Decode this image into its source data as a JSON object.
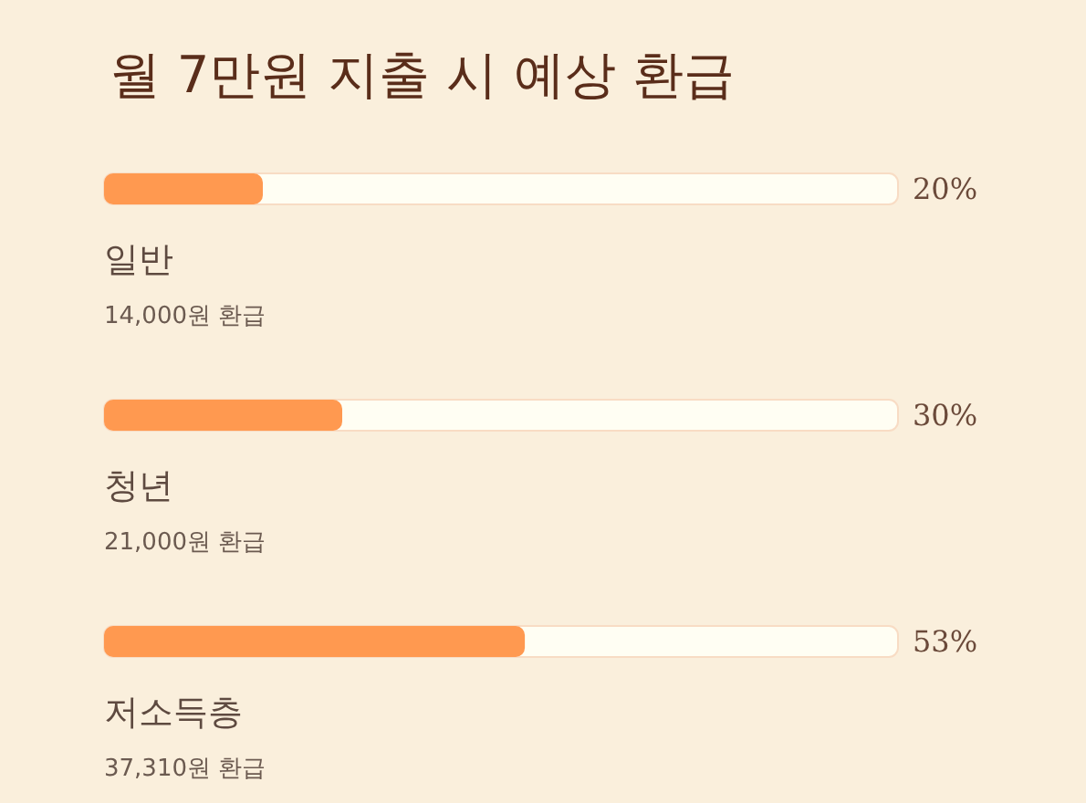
{
  "chart_data": {
    "type": "bar",
    "orientation": "horizontal",
    "title": "월 7만원 지출 시 예상 환급",
    "categories": [
      "일반",
      "청년",
      "저소득층"
    ],
    "values": [
      20,
      30,
      53
    ],
    "value_labels": [
      "20%",
      "30%",
      "53%"
    ],
    "color": "#ff9950",
    "xlim": [
      0,
      100
    ],
    "tick_labels": false,
    "annotations": [
      "14,000원 환급",
      "21,000원 환급",
      "37,310원 환급"
    ]
  }
}
